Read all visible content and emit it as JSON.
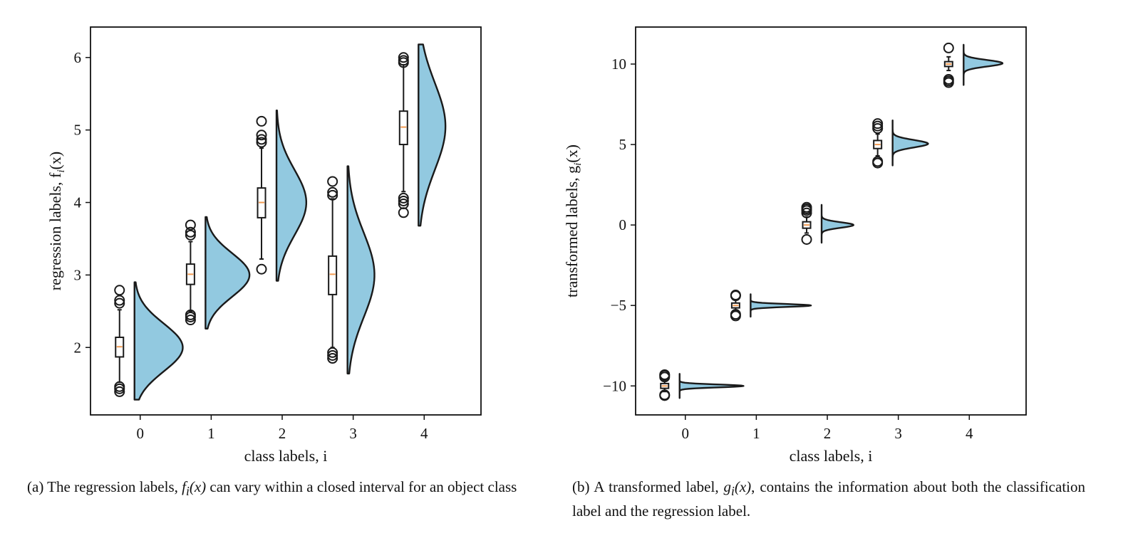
{
  "chart_data": [
    {
      "type": "violin",
      "xlabel": "class labels, i",
      "ylabel": "regression labels, f",
      "ylabel_sub": "i",
      "ylabel_tail": "(x)",
      "categories": [
        "0",
        "1",
        "2",
        "3",
        "4"
      ],
      "xlim": [
        -0.7,
        4.8
      ],
      "ylim": [
        1.07,
        6.42
      ],
      "yticks": [
        "2",
        "3",
        "4",
        "5",
        "6"
      ],
      "colors": {
        "violin": "#92c9e0",
        "median": "#f29b52",
        "outline": "#1a1a1a"
      },
      "groups": [
        {
          "x": 0,
          "q1": 1.87,
          "median": 2.01,
          "q3": 2.14,
          "wlo": 1.52,
          "whi": 2.52,
          "vmin": 1.28,
          "vmax": 2.9,
          "peak": 2.0,
          "width": 0.68,
          "spread": 0.33,
          "outliers": [
            1.39,
            1.43,
            1.46,
            2.61,
            2.65,
            2.79
          ]
        },
        {
          "x": 1,
          "q1": 2.87,
          "median": 3.01,
          "q3": 3.15,
          "wlo": 2.5,
          "whi": 3.46,
          "vmin": 2.26,
          "vmax": 3.8,
          "peak": 3.0,
          "width": 0.62,
          "spread": 0.3,
          "outliers": [
            2.38,
            2.42,
            2.45,
            3.55,
            3.59,
            3.69
          ]
        },
        {
          "x": 2,
          "q1": 3.79,
          "median": 4.0,
          "q3": 4.2,
          "wlo": 3.22,
          "whi": 4.75,
          "vmin": 2.92,
          "vmax": 5.27,
          "peak": 4.0,
          "width": 0.42,
          "spread": 0.45,
          "outliers": [
            3.08,
            4.83,
            4.87,
            4.93,
            5.12
          ]
        },
        {
          "x": 3,
          "q1": 2.73,
          "median": 3.01,
          "q3": 3.26,
          "wlo": 2.0,
          "whi": 4.05,
          "vmin": 1.64,
          "vmax": 4.5,
          "peak": 3.0,
          "width": 0.38,
          "spread": 0.58,
          "outliers": [
            1.85,
            1.89,
            1.93,
            4.1,
            4.14,
            4.29
          ]
        },
        {
          "x": 4,
          "q1": 4.8,
          "median": 5.04,
          "q3": 5.26,
          "wlo": 4.15,
          "whi": 5.9,
          "vmin": 3.68,
          "vmax": 6.18,
          "peak": 5.05,
          "width": 0.38,
          "spread": 0.6,
          "outliers": [
            3.86,
            3.98,
            4.02,
            4.06,
            5.93,
            5.96,
            6.0
          ]
        }
      ]
    },
    {
      "type": "violin",
      "xlabel": "class labels, i",
      "ylabel": "transformed labels, g",
      "ylabel_sub": "i",
      "ylabel_tail": "(x)",
      "categories": [
        "0",
        "1",
        "2",
        "3",
        "4"
      ],
      "xlim": [
        -0.7,
        4.8
      ],
      "ylim": [
        -11.8,
        12.3
      ],
      "yticks": [
        "-10",
        "-5",
        "0",
        "5",
        "10"
      ],
      "colors": {
        "violin": "#92c9e0",
        "median": "#f29b52",
        "outline": "#1a1a1a"
      },
      "groups": [
        {
          "x": 0,
          "q1": -10.15,
          "median": -10.0,
          "q3": -9.85,
          "wlo": -10.35,
          "whi": -9.65,
          "vmin": -10.75,
          "vmax": -9.25,
          "peak": -10.0,
          "width": 0.9,
          "spread": 0.09,
          "outliers": [
            -10.6,
            -10.55,
            -9.45,
            -9.35,
            -9.3
          ]
        },
        {
          "x": 1,
          "q1": -5.15,
          "median": -5.0,
          "q3": -4.85,
          "wlo": -5.35,
          "whi": -4.65,
          "vmin": -5.7,
          "vmax": -4.3,
          "peak": -5.0,
          "width": 0.85,
          "spread": 0.09,
          "outliers": [
            -5.65,
            -5.55,
            -4.4,
            -4.35
          ]
        },
        {
          "x": 2,
          "q1": -0.2,
          "median": 0.0,
          "q3": 0.2,
          "wlo": -0.5,
          "whi": 0.5,
          "vmin": -1.1,
          "vmax": 1.25,
          "peak": 0.0,
          "width": 0.45,
          "spread": 0.17,
          "outliers": [
            -0.9,
            0.75,
            0.9,
            1.0,
            1.1
          ]
        },
        {
          "x": 3,
          "q1": 4.75,
          "median": 5.0,
          "q3": 5.25,
          "wlo": 4.3,
          "whi": 5.65,
          "vmin": 3.7,
          "vmax": 6.5,
          "peak": 5.05,
          "width": 0.5,
          "spread": 0.23,
          "outliers": [
            3.85,
            3.95,
            6.0,
            6.15,
            6.3
          ]
        },
        {
          "x": 4,
          "q1": 9.85,
          "median": 10.0,
          "q3": 10.15,
          "wlo": 9.6,
          "whi": 10.45,
          "vmin": 8.7,
          "vmax": 11.2,
          "peak": 10.05,
          "width": 0.55,
          "spread": 0.2,
          "outliers": [
            8.85,
            8.95,
            9.05,
            11.0
          ]
        }
      ]
    }
  ],
  "captions": [
    {
      "prefix": "(a) The regression labels, ",
      "math": "f",
      "math_sub": "i",
      "math_tail": "(x)",
      "rest": " can vary within a closed interval for an object class"
    },
    {
      "prefix": "(b) A transformed label, ",
      "math": "g",
      "math_sub": "i",
      "math_tail": "(x)",
      "rest": ", contains the information about both the classification label and the regression label."
    }
  ]
}
